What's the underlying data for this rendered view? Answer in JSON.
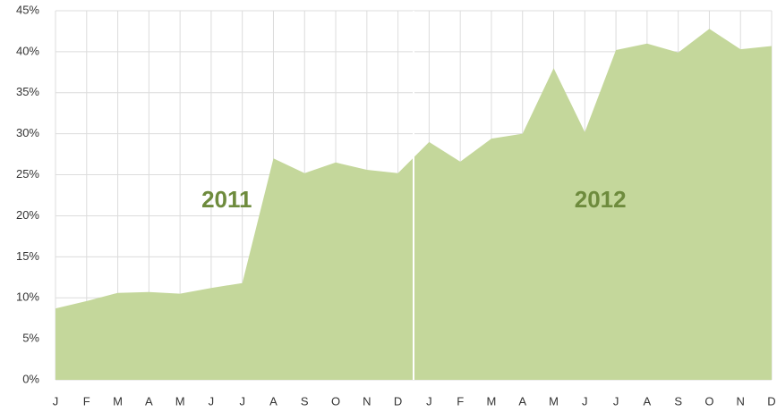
{
  "chart_data": {
    "type": "area",
    "categories": [
      "J",
      "F",
      "M",
      "A",
      "M",
      "J",
      "J",
      "A",
      "S",
      "O",
      "N",
      "D",
      "J",
      "F",
      "M",
      "A",
      "M",
      "J",
      "J",
      "A",
      "S",
      "O",
      "N",
      "D"
    ],
    "values": [
      8.7,
      9.6,
      10.6,
      10.7,
      10.5,
      11.2,
      11.8,
      27.0,
      25.2,
      26.5,
      25.6,
      25.2,
      29.0,
      26.6,
      29.4,
      30.0,
      38.0,
      30.2,
      40.2,
      41.0,
      39.9,
      42.8,
      40.3,
      40.7
    ],
    "color": "#c4d79b",
    "ylim": [
      0,
      45
    ],
    "yticks": [
      {
        "value": 0,
        "label": "0%"
      },
      {
        "value": 5,
        "label": "5%"
      },
      {
        "value": 10,
        "label": "10%"
      },
      {
        "value": 15,
        "label": "15%"
      },
      {
        "value": 20,
        "label": "20%"
      },
      {
        "value": 25,
        "label": "25%"
      },
      {
        "value": 30,
        "label": "30%"
      },
      {
        "value": 35,
        "label": "35%"
      },
      {
        "value": 40,
        "label": "40%"
      },
      {
        "value": 45,
        "label": "45%"
      }
    ],
    "grid": true,
    "annotations": [
      {
        "text": "2011"
      },
      {
        "text": "2012"
      }
    ]
  }
}
